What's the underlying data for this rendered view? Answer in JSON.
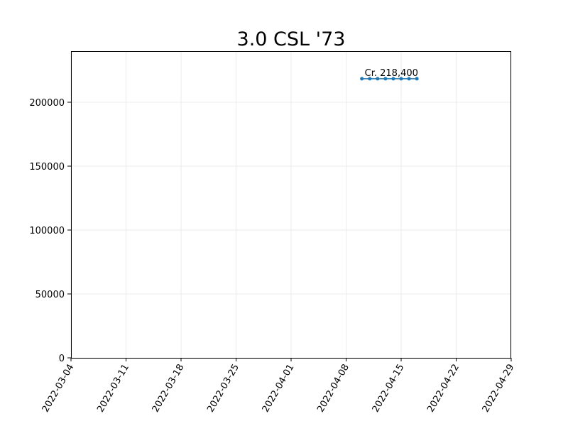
{
  "chart_data": {
    "type": "line",
    "title": "3.0 CSL '73",
    "xlabel": "",
    "ylabel": "",
    "x_ticks": [
      "2022-03-04",
      "2022-03-11",
      "2022-03-18",
      "2022-03-25",
      "2022-04-01",
      "2022-04-08",
      "2022-04-15",
      "2022-04-22",
      "2022-04-29"
    ],
    "y_ticks": [
      "0",
      "50000",
      "100000",
      "150000",
      "200000"
    ],
    "xlim": [
      "2022-03-04",
      "2022-04-29"
    ],
    "ylim": [
      0,
      240000
    ],
    "grid": true,
    "series": [
      {
        "x": [
          "2022-04-10",
          "2022-04-11",
          "2022-04-12",
          "2022-04-13",
          "2022-04-14",
          "2022-04-15",
          "2022-04-16",
          "2022-04-17"
        ],
        "y": [
          218400,
          218400,
          218400,
          218400,
          218400,
          218400,
          218400,
          218400
        ],
        "color": "#1f77b4"
      }
    ],
    "annotations": [
      {
        "x": "2022-04-10",
        "y": 218400,
        "text": "Cr. 218,400"
      }
    ]
  }
}
